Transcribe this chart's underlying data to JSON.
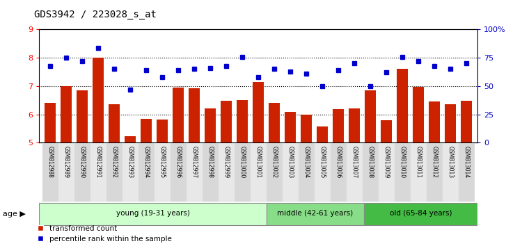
{
  "title": "GDS3942 / 223028_s_at",
  "samples": [
    "GSM812988",
    "GSM812989",
    "GSM812990",
    "GSM812991",
    "GSM812992",
    "GSM812993",
    "GSM812994",
    "GSM812995",
    "GSM812996",
    "GSM812997",
    "GSM812998",
    "GSM812999",
    "GSM813000",
    "GSM813001",
    "GSM813002",
    "GSM813003",
    "GSM813004",
    "GSM813005",
    "GSM813006",
    "GSM813007",
    "GSM813008",
    "GSM813009",
    "GSM813010",
    "GSM813011",
    "GSM813012",
    "GSM813013",
    "GSM813014"
  ],
  "bar_values": [
    6.4,
    7.0,
    6.85,
    8.01,
    6.35,
    5.22,
    5.85,
    5.82,
    6.95,
    6.92,
    6.2,
    6.48,
    6.5,
    7.15,
    6.42,
    6.08,
    6.0,
    5.57,
    6.18,
    6.2,
    6.85,
    5.8,
    7.62,
    6.98,
    6.45,
    6.35,
    6.48
  ],
  "dot_percentiles": [
    68,
    75,
    72,
    84,
    65,
    47,
    64,
    58,
    64,
    65,
    66,
    68,
    76,
    58,
    65,
    63,
    61,
    50,
    64,
    70,
    50,
    62,
    76,
    72,
    68,
    65,
    70
  ],
  "groups": [
    {
      "label": "young (19-31 years)",
      "start": 0,
      "end": 14,
      "color": "#ccffcc"
    },
    {
      "label": "middle (42-61 years)",
      "start": 14,
      "end": 20,
      "color": "#88dd88"
    },
    {
      "label": "old (65-84 years)",
      "start": 20,
      "end": 27,
      "color": "#44bb44"
    }
  ],
  "bar_color": "#cc2200",
  "dot_color": "#0000cc",
  "ylim_left": [
    5,
    9
  ],
  "ylim_right": [
    0,
    100
  ],
  "yticks_left": [
    5,
    6,
    7,
    8,
    9
  ],
  "yticks_right": [
    0,
    25,
    50,
    75,
    100
  ],
  "yticklabels_right": [
    "0",
    "25",
    "50",
    "75",
    "100%"
  ],
  "hlines": [
    6,
    7,
    8
  ],
  "title_fontsize": 10,
  "age_label": "age"
}
